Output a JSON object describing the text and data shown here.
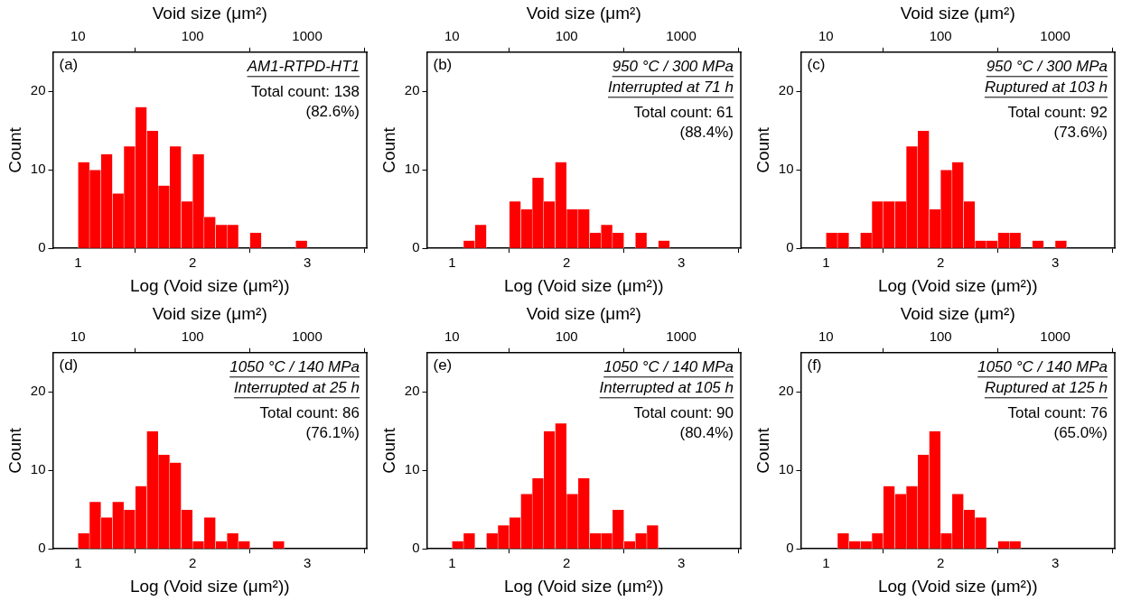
{
  "chart_data": [
    {
      "type": "histogram",
      "title": "(a)",
      "subtitle": "AM1-RTPD-HT1",
      "annotations": [
        "Total count: 138",
        "(82.6%)"
      ],
      "xlabel": "Log (Void size (μm²))",
      "x2label": "Void size (μm²)",
      "ylabel": "Count",
      "color": "#ff0000",
      "bins": [
        1.0,
        1.1,
        1.2,
        1.3,
        1.4,
        1.5,
        1.6,
        1.7,
        1.8,
        1.9,
        2.0,
        2.1,
        2.2,
        2.3,
        2.4,
        2.5,
        2.6,
        2.7,
        2.8,
        2.9,
        3.0
      ],
      "values": [
        11,
        10,
        12,
        7,
        13,
        18,
        15,
        8,
        13,
        6,
        12,
        4,
        3,
        3,
        0,
        2,
        0,
        0,
        0,
        1
      ],
      "xlim": [
        0.78,
        3.52
      ],
      "xticks": [
        1,
        2,
        3
      ],
      "log": "x2",
      "x2lim": [
        6.03,
        3311
      ],
      "x2ticks": [
        10,
        100,
        1000
      ],
      "ylim": [
        0,
        25
      ],
      "yticks": [
        0,
        10,
        20
      ]
    },
    {
      "type": "histogram",
      "title": "(b)",
      "subtitle": "950 °C / 300 MPa\nInterrupted at 71 h",
      "annotations": [
        "Total count: 61",
        "(88.4%)"
      ],
      "xlabel": "Log (Void size (μm²))",
      "x2label": "Void size (μm²)",
      "ylabel": "Count",
      "color": "#ff0000",
      "bins": [
        1.1,
        1.2,
        1.3,
        1.4,
        1.5,
        1.6,
        1.7,
        1.8,
        1.9,
        2.0,
        2.1,
        2.2,
        2.3,
        2.4,
        2.5,
        2.6,
        2.7,
        2.8,
        2.9
      ],
      "values": [
        1,
        3,
        0,
        0,
        6,
        5,
        9,
        6,
        11,
        5,
        5,
        2,
        3,
        2,
        0,
        2,
        0,
        1
      ],
      "xlim": [
        0.78,
        3.52
      ],
      "xticks": [
        1,
        2,
        3
      ],
      "log": "x2",
      "x2lim": [
        6.03,
        3311
      ],
      "x2ticks": [
        10,
        100,
        1000
      ],
      "ylim": [
        0,
        25
      ],
      "yticks": [
        0,
        10,
        20
      ]
    },
    {
      "type": "histogram",
      "title": "(c)",
      "subtitle": "950 °C / 300 MPa\nRuptured at 103 h",
      "annotations": [
        "Total count: 92",
        "(73.6%)"
      ],
      "xlabel": "Log (Void size (μm²))",
      "x2label": "Void size (μm²)",
      "ylabel": "Count",
      "color": "#ff0000",
      "bins": [
        1.0,
        1.1,
        1.2,
        1.3,
        1.4,
        1.5,
        1.6,
        1.7,
        1.8,
        1.9,
        2.0,
        2.1,
        2.2,
        2.3,
        2.4,
        2.5,
        2.6,
        2.7,
        2.8,
        2.9,
        3.0,
        3.1
      ],
      "values": [
        2,
        2,
        0,
        2,
        6,
        6,
        6,
        13,
        15,
        5,
        10,
        11,
        6,
        1,
        1,
        2,
        2,
        0,
        1,
        0,
        1
      ],
      "xlim": [
        0.78,
        3.52
      ],
      "xticks": [
        1,
        2,
        3
      ],
      "log": "x2",
      "x2lim": [
        6.03,
        3311
      ],
      "x2ticks": [
        10,
        100,
        1000
      ],
      "ylim": [
        0,
        25
      ],
      "yticks": [
        0,
        10,
        20
      ]
    },
    {
      "type": "histogram",
      "title": "(d)",
      "subtitle": "1050 °C / 140 MPa\nInterrupted at 25 h",
      "annotations": [
        "Total count: 86",
        "(76.1%)"
      ],
      "xlabel": "Log (Void size (μm²))",
      "x2label": "Void size (μm²)",
      "ylabel": "Count",
      "color": "#ff0000",
      "bins": [
        1.0,
        1.1,
        1.2,
        1.3,
        1.4,
        1.5,
        1.6,
        1.7,
        1.8,
        1.9,
        2.0,
        2.1,
        2.2,
        2.3,
        2.4,
        2.5,
        2.6,
        2.7,
        2.8
      ],
      "values": [
        2,
        6,
        4,
        6,
        5,
        8,
        15,
        12,
        11,
        5,
        1,
        4,
        1,
        2,
        1,
        0,
        0,
        1
      ],
      "xlim": [
        0.78,
        3.52
      ],
      "xticks": [
        1,
        2,
        3
      ],
      "log": "x2",
      "x2lim": [
        6.03,
        3311
      ],
      "x2ticks": [
        10,
        100,
        1000
      ],
      "ylim": [
        0,
        25
      ],
      "yticks": [
        0,
        10,
        20
      ]
    },
    {
      "type": "histogram",
      "title": "(e)",
      "subtitle": "1050 °C / 140 MPa\nInterrupted at 105 h",
      "annotations": [
        "Total count: 90",
        "(80.4%)"
      ],
      "xlabel": "Log (Void size (μm²))",
      "x2label": "Void size (μm²)",
      "ylabel": "Count",
      "color": "#ff0000",
      "bins": [
        1.0,
        1.1,
        1.2,
        1.3,
        1.4,
        1.5,
        1.6,
        1.7,
        1.8,
        1.9,
        2.0,
        2.1,
        2.2,
        2.3,
        2.4,
        2.5,
        2.6,
        2.7,
        2.8
      ],
      "values": [
        1,
        2,
        0,
        2,
        3,
        4,
        7,
        9,
        15,
        16,
        7,
        9,
        2,
        2,
        5,
        1,
        2,
        3
      ],
      "xlim": [
        0.78,
        3.52
      ],
      "xticks": [
        1,
        2,
        3
      ],
      "log": "x2",
      "x2lim": [
        6.03,
        3311
      ],
      "x2ticks": [
        10,
        100,
        1000
      ],
      "ylim": [
        0,
        25
      ],
      "yticks": [
        0,
        10,
        20
      ]
    },
    {
      "type": "histogram",
      "title": "(f)",
      "subtitle": "1050 °C / 140 MPa\nRuptured at 125 h",
      "annotations": [
        "Total count: 76",
        "(65.0%)"
      ],
      "xlabel": "Log (Void size (μm²))",
      "x2label": "Void size (μm²)",
      "ylabel": "Count",
      "color": "#ff0000",
      "bins": [
        1.1,
        1.2,
        1.3,
        1.4,
        1.5,
        1.6,
        1.7,
        1.8,
        1.9,
        2.0,
        2.1,
        2.2,
        2.3,
        2.4,
        2.5,
        2.6,
        2.7
      ],
      "values": [
        2,
        1,
        1,
        2,
        8,
        7,
        8,
        12,
        15,
        2,
        7,
        5,
        4,
        0,
        1,
        1
      ],
      "xlim": [
        0.78,
        3.52
      ],
      "xticks": [
        1,
        2,
        3
      ],
      "log": "x2",
      "x2lim": [
        6.03,
        3311
      ],
      "x2ticks": [
        10,
        100,
        1000
      ],
      "ylim": [
        0,
        25
      ],
      "yticks": [
        0,
        10,
        20
      ]
    }
  ]
}
